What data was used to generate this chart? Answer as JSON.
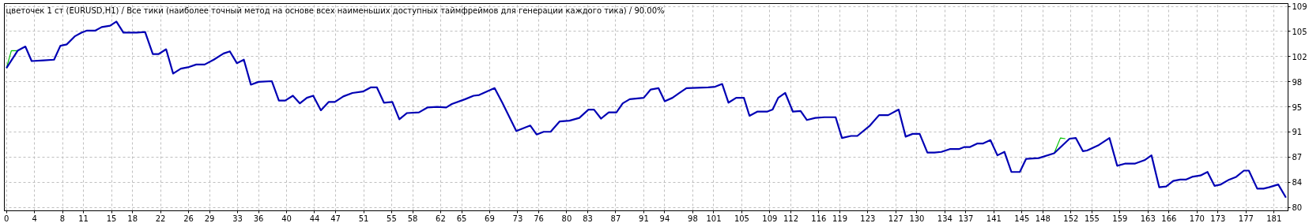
{
  "chart_data": {
    "type": "line",
    "title": "цветочек 1 ст (EURUSD,H1) / Все тики (наиболее точный метод на основе всех наименьших доступных таймфреймов для генерации каждого тика) / 90.00%",
    "xlim": [
      -0.3,
      183
    ],
    "ylim": [
      79.5,
      109.4
    ],
    "xticks": [
      0,
      4,
      8,
      11,
      15,
      18,
      22,
      26,
      29,
      33,
      36,
      40,
      44,
      47,
      51,
      55,
      58,
      62,
      65,
      69,
      73,
      76,
      80,
      83,
      87,
      91,
      94,
      98,
      101,
      105,
      109,
      112,
      116,
      119,
      123,
      127,
      130,
      134,
      137,
      141,
      145,
      148,
      152,
      155,
      159,
      163,
      166,
      170,
      173,
      177,
      181
    ],
    "yticks": [
      {
        "value": 80,
        "label": "80"
      },
      {
        "value": 83.625,
        "label": "84"
      },
      {
        "value": 87.25,
        "label": "87"
      },
      {
        "value": 90.875,
        "label": "91"
      },
      {
        "value": 94.5,
        "label": "95"
      },
      {
        "value": 98.125,
        "label": "98"
      },
      {
        "value": 101.75,
        "label": "102"
      },
      {
        "value": 105.375,
        "label": "105"
      },
      {
        "value": 109,
        "label": "109"
      }
    ],
    "grid": true,
    "marker": "none",
    "series": [
      {
        "color": "#00c000",
        "x": [
          0,
          0.7,
          1.6,
          110,
          149.6,
          150.5,
          151.2
        ],
        "values": [
          100.1,
          102.6,
          102.6,
          null,
          87.8,
          90.0,
          89.9
        ]
      },
      {
        "color": "#0000b4",
        "x": [
          0,
          1.6,
          2.7,
          3.6,
          5.3,
          6.8,
          7.7,
          8.6,
          9.8,
          10.7,
          11.5,
          12.7,
          13.6,
          14.8,
          15.7,
          16.7,
          18.6,
          19.8,
          20.9,
          21.7,
          22.8,
          23.8,
          24.9,
          25.9,
          27.1,
          28.3,
          29.6,
          31,
          31.9,
          32.9,
          33.9,
          34.9,
          36,
          37.9,
          38.9,
          39.8,
          40.9,
          41.9,
          42.9,
          43.8,
          44.9,
          46,
          46.9,
          48.1,
          49.4,
          50.9,
          52,
          52.9,
          53.9,
          55.1,
          56.1,
          57.2,
          58.9,
          60.1,
          61.5,
          62.8,
          63.6,
          65.5,
          66.7,
          67.5,
          69.7,
          70.8,
          72.8,
          74.8,
          75.7,
          76.7,
          77.7,
          79,
          80.4,
          81.8,
          83.1,
          83.9,
          84.9,
          86,
          87.1,
          88,
          89,
          91,
          92,
          93.1,
          94,
          95.1,
          96.1,
          97.1,
          100.2,
          101.2,
          102.2,
          103.1,
          104.2,
          105.3,
          106.1,
          107.2,
          108.6,
          109.4,
          110.2,
          111.2,
          112.3,
          113.4,
          114.3,
          115.5,
          116.8,
          118.4,
          119.3,
          120.6,
          121.5,
          123.3,
          124.6,
          125.9,
          127.4,
          128.4,
          129.4,
          130.4,
          131.5,
          132.5,
          133.5,
          134.7,
          136,
          136.8,
          137.6,
          138.6,
          139.4,
          140.5,
          141.5,
          142.5,
          143.5,
          144.7,
          145.6,
          147.4,
          149.6,
          151.8,
          152.7,
          153.7,
          154.3,
          156,
          157.5,
          158.6,
          159.7,
          161.1,
          162.5,
          163.5,
          164.6,
          165.6,
          166.6,
          167.6,
          168.4,
          169.3,
          170.5,
          171.5,
          172.5,
          173.4,
          174.6,
          175.6,
          176.7,
          177.4,
          178.6,
          179.5,
          180.3,
          181.6,
          182.7
        ],
        "values": [
          100.1,
          102.6,
          103.2,
          101.1,
          101.2,
          101.3,
          103.3,
          103.5,
          104.7,
          105.2,
          105.5,
          105.5,
          106.0,
          106.2,
          106.8,
          105.2,
          105.2,
          105.3,
          102.1,
          102.1,
          102.8,
          99.3,
          100.0,
          100.2,
          100.6,
          100.6,
          101.3,
          102.2,
          102.5,
          100.8,
          101.3,
          97.7,
          98.1,
          98.2,
          95.4,
          95.4,
          96.1,
          95.0,
          95.8,
          96.1,
          94.0,
          95.2,
          95.2,
          96.0,
          96.5,
          96.7,
          97.3,
          97.3,
          95.1,
          95.2,
          92.7,
          93.6,
          93.7,
          94.4,
          94.5,
          94.4,
          94.9,
          95.6,
          96.1,
          96.2,
          97.2,
          95.1,
          91.0,
          91.8,
          90.5,
          90.9,
          90.9,
          92.4,
          92.5,
          92.9,
          94.1,
          94.1,
          92.8,
          93.7,
          93.7,
          95.0,
          95.6,
          95.8,
          97.0,
          97.2,
          95.3,
          95.8,
          96.5,
          97.2,
          97.3,
          97.4,
          97.8,
          95.1,
          95.8,
          95.8,
          93.2,
          93.8,
          93.8,
          94.1,
          95.8,
          96.5,
          93.8,
          93.9,
          92.6,
          92.9,
          93.0,
          93.0,
          90.0,
          90.3,
          90.3,
          91.8,
          93.3,
          93.3,
          94.1,
          90.2,
          90.6,
          90.6,
          87.9,
          87.9,
          88.0,
          88.4,
          88.4,
          88.7,
          88.7,
          89.2,
          89.2,
          89.7,
          87.5,
          88.0,
          85.1,
          85.1,
          87.0,
          87.1,
          87.8,
          89.9,
          90.0,
          88.1,
          88.2,
          89.0,
          90.0,
          86.0,
          86.3,
          86.3,
          86.8,
          87.5,
          82.9,
          83.0,
          83.8,
          84.0,
          84.0,
          84.4,
          84.6,
          85.1,
          83.1,
          83.3,
          84.0,
          84.4,
          85.3,
          85.3,
          82.7,
          82.7,
          82.9,
          83.3,
          81.4
        ]
      }
    ]
  }
}
